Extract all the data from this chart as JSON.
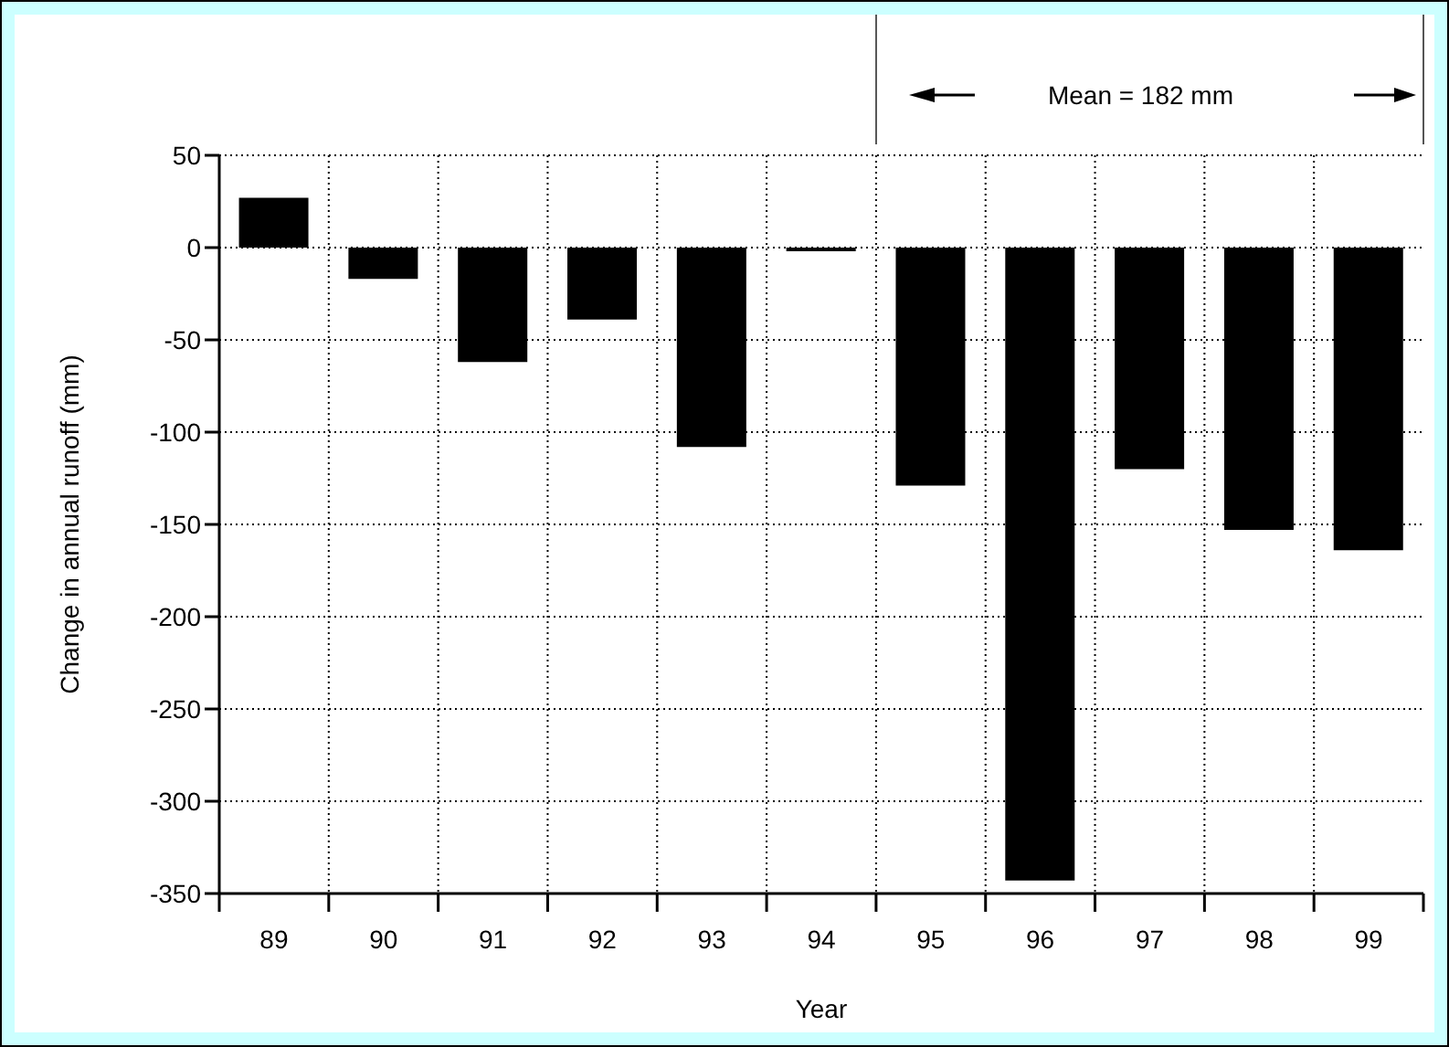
{
  "chart_data": {
    "type": "bar",
    "xlabel": "Year",
    "ylabel": "Change in annual runoff (mm)",
    "categories": [
      "89",
      "90",
      "91",
      "92",
      "93",
      "94",
      "95",
      "96",
      "97",
      "98",
      "99"
    ],
    "values": [
      27,
      -17,
      -62,
      -39,
      -108,
      -2,
      -129,
      -343,
      -120,
      -153,
      -164
    ],
    "color": "#000000",
    "ylim": [
      -350,
      50
    ],
    "yticks": [
      -350,
      -300,
      -250,
      -200,
      -150,
      -100,
      -50,
      0,
      50
    ],
    "grid": true,
    "annotations": [
      "Mean = 182 mm"
    ]
  }
}
